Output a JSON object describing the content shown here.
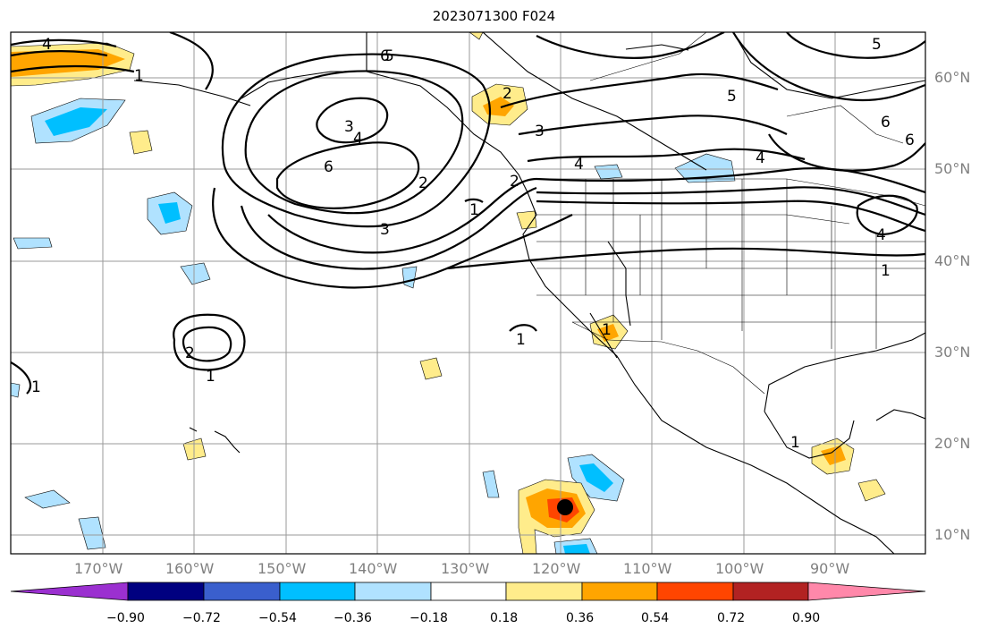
{
  "title": "2023071300 F024",
  "map": {
    "lon_range": [
      -180,
      -80
    ],
    "lat_range": [
      8,
      65
    ],
    "lon_ticks": [
      "170°W",
      "160°W",
      "150°W",
      "140°W",
      "130°W",
      "120°W",
      "110°W",
      "100°W",
      "90°W"
    ],
    "lat_ticks": [
      "60°N",
      "50°N",
      "40°N",
      "30°N",
      "20°N",
      "10°N"
    ],
    "contour_labels": [
      "4",
      "6",
      "5",
      "2",
      "3",
      "4",
      "6",
      "2",
      "3",
      "1",
      "2",
      "3",
      "4",
      "5",
      "6",
      "5",
      "6",
      "4",
      "1",
      "4",
      "1",
      "2",
      "1",
      "1",
      "1",
      "1",
      "1"
    ],
    "hurricane_marker": "storm-center"
  },
  "colorbar": {
    "colors": [
      "#9b30d0",
      "#000080",
      "#3a5fcd",
      "#00bfff",
      "#b0e2ff",
      "#ffffff",
      "#ffec8b",
      "#ffa500",
      "#ff4500",
      "#b22222",
      "#ff88aa"
    ],
    "labels": [
      "−0.90",
      "−0.72",
      "−0.54",
      "−0.36",
      "−0.18",
      "0.18",
      "0.36",
      "0.54",
      "0.72",
      "0.90"
    ]
  }
}
